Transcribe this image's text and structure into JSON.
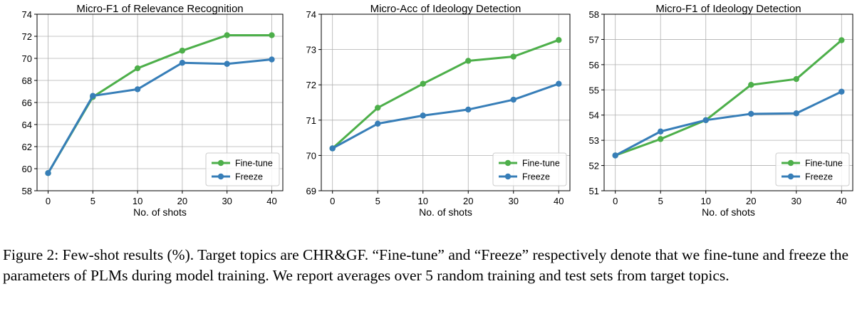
{
  "chart_data": [
    {
      "type": "line",
      "title": "Micro-F1 of Relevance Recognition",
      "xlabel": "No. of shots",
      "ylabel": "",
      "categories": [
        "0",
        "5",
        "10",
        "20",
        "30",
        "40"
      ],
      "yticks": [
        "58",
        "60",
        "62",
        "64",
        "66",
        "68",
        "70",
        "72",
        "74"
      ],
      "ylim": [
        58,
        74
      ],
      "grid": true,
      "legend": "bottom-right",
      "series": [
        {
          "name": "Fine-tune",
          "color": "#4daf4a",
          "values": [
            59.6,
            66.5,
            69.1,
            70.7,
            72.1,
            72.1
          ]
        },
        {
          "name": "Freeze",
          "color": "#377eb8",
          "values": [
            59.6,
            66.6,
            67.2,
            69.6,
            69.5,
            69.9
          ]
        }
      ]
    },
    {
      "type": "line",
      "title": "Micro-Acc of Ideology Detection",
      "xlabel": "No. of shots",
      "ylabel": "",
      "categories": [
        "0",
        "5",
        "10",
        "20",
        "30",
        "40"
      ],
      "yticks": [
        "69",
        "70",
        "71",
        "72",
        "73",
        "74"
      ],
      "ylim": [
        69,
        74
      ],
      "grid": true,
      "legend": "bottom-right",
      "series": [
        {
          "name": "Fine-tune",
          "color": "#4daf4a",
          "values": [
            70.2,
            71.35,
            72.03,
            72.68,
            72.8,
            73.27
          ]
        },
        {
          "name": "Freeze",
          "color": "#377eb8",
          "values": [
            70.2,
            70.9,
            71.13,
            71.3,
            71.58,
            72.03
          ]
        }
      ]
    },
    {
      "type": "line",
      "title": "Micro-F1 of Ideology Detection",
      "xlabel": "No. of shots",
      "ylabel": "",
      "categories": [
        "0",
        "5",
        "10",
        "20",
        "30",
        "40"
      ],
      "yticks": [
        "51",
        "52",
        "53",
        "54",
        "55",
        "56",
        "57",
        "58"
      ],
      "ylim": [
        51,
        58
      ],
      "grid": true,
      "legend": "bottom-right",
      "series": [
        {
          "name": "Fine-tune",
          "color": "#4daf4a",
          "values": [
            52.4,
            53.05,
            53.8,
            55.2,
            55.43,
            56.97
          ]
        },
        {
          "name": "Freeze",
          "color": "#377eb8",
          "values": [
            52.4,
            53.35,
            53.8,
            54.05,
            54.07,
            54.93
          ]
        }
      ]
    }
  ],
  "caption": "Figure 2: Few-shot results (%). Target topics are CHR&GF. “Fine-tune” and “Freeze” respectively denote that we fine-tune and freeze the parameters of PLMs during model training. We report averages over 5 random training and test sets from target topics."
}
